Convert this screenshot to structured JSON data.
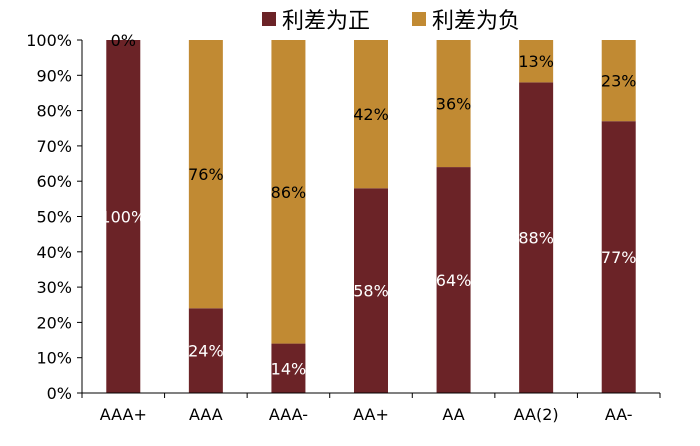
{
  "chart_data": {
    "type": "bar",
    "stacked": true,
    "percent_stacked": true,
    "categories": [
      "AAA+",
      "AAA",
      "AAA-",
      "AA+",
      "AA",
      "AA(2)",
      "AA-"
    ],
    "series": [
      {
        "name": "利差为正",
        "color": "#6b2327",
        "values": [
          100,
          24,
          14,
          58,
          64,
          88,
          77
        ],
        "labels": [
          "100%",
          "24%",
          "14%",
          "58%",
          "64%",
          "88%",
          "77%"
        ]
      },
      {
        "name": "利差为负",
        "color": "#c18a33",
        "values": [
          0,
          76,
          86,
          42,
          36,
          13,
          23
        ],
        "labels": [
          "0%",
          "76%",
          "86%",
          "42%",
          "36%",
          "13%",
          "23%"
        ]
      }
    ],
    "y_ticks": [
      "0%",
      "10%",
      "20%",
      "30%",
      "40%",
      "50%",
      "60%",
      "70%",
      "80%",
      "90%",
      "100%"
    ],
    "ylim": [
      0,
      100
    ],
    "grid": false,
    "legend_position": "top"
  }
}
